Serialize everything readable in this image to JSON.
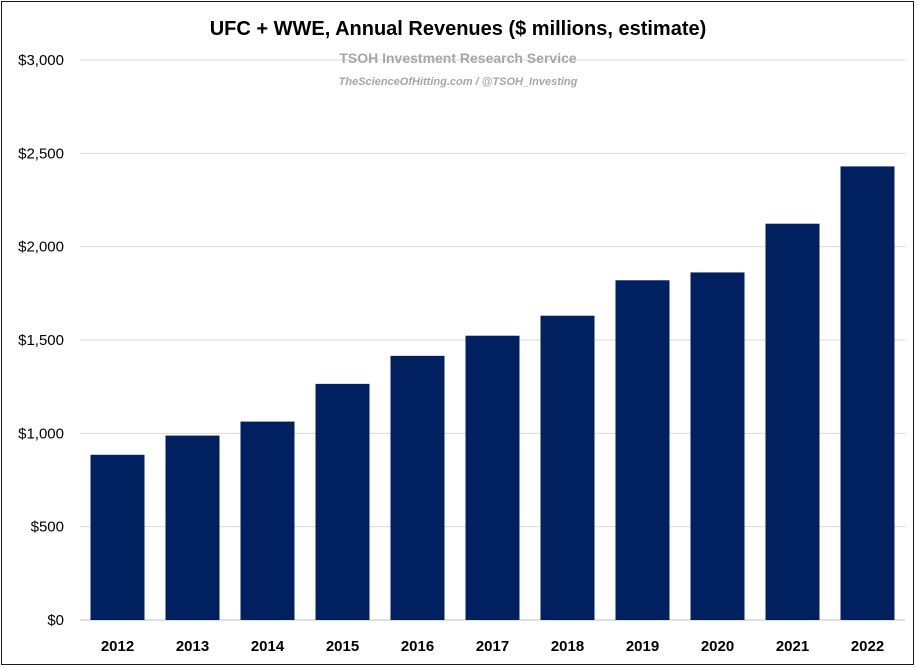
{
  "chart_data": {
    "type": "bar",
    "title": "UFC + WWE, Annual Revenues ($ millions, estimate)",
    "subtitle": "TSOH Investment Research Service",
    "source": "TheScienceOfHitting.com / @TSOH_Investing",
    "categories": [
      "2012",
      "2013",
      "2014",
      "2015",
      "2016",
      "2017",
      "2018",
      "2019",
      "2020",
      "2021",
      "2022"
    ],
    "values": [
      885,
      988,
      1063,
      1265,
      1415,
      1523,
      1630,
      1820,
      1862,
      2123,
      2430
    ],
    "ylim": [
      0,
      3000
    ],
    "yticks": [
      0,
      500,
      1000,
      1500,
      2000,
      2500,
      3000
    ],
    "ytick_labels": [
      "$0",
      "$500",
      "$1,000",
      "$1,500",
      "$2,000",
      "$2,500",
      "$3,000"
    ],
    "grid": true,
    "bar_color": "#002060",
    "legend": "none"
  }
}
